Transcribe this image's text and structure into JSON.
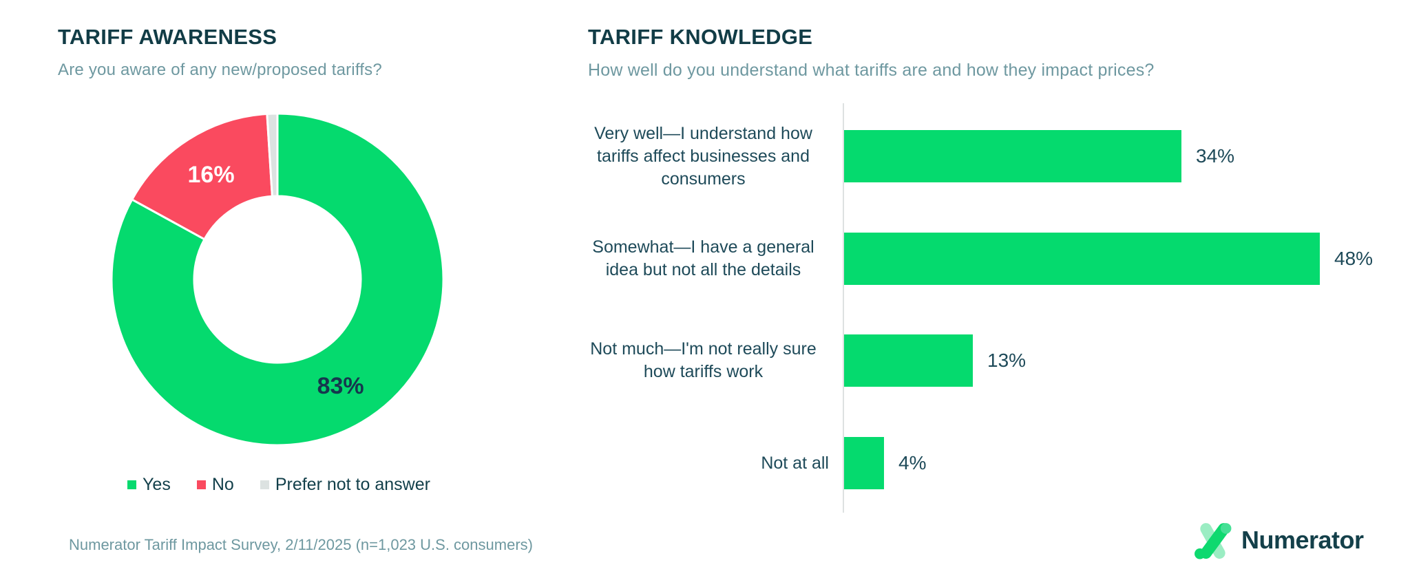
{
  "left_panel": {
    "title": "TARIFF AWARENESS",
    "subtitle": "Are you aware of any new/proposed tariffs?"
  },
  "right_panel": {
    "title": "TARIFF KNOWLEDGE",
    "subtitle": "How well do you understand what tariffs are and how they impact prices?"
  },
  "footer": {
    "source_note": "Numerator Tariff Impact Survey, 2/11/2025 (n=1,023 U.S. consumers)",
    "logo_text": "Numerator"
  },
  "colors": {
    "brand_green": "#05DA6E",
    "negative_red": "#FA4A5F",
    "neutral_gray": "#DCE2E1",
    "title_text": "#113C46",
    "subtitle_text": "#6E98A0",
    "label_text": "#1E4A59",
    "axis_line": "#DDE1E1"
  },
  "chart_data": [
    {
      "type": "pie",
      "subtype": "donut",
      "title": "TARIFF AWARENESS",
      "question": "Are you aware of any new/proposed tariffs?",
      "labels": [
        "Yes",
        "No",
        "Prefer not to answer"
      ],
      "values": [
        83,
        16,
        1
      ],
      "slice_colors": [
        "#05DA6E",
        "#FA4A5F",
        "#DCE2E1"
      ],
      "data_labels": [
        "83%",
        "16%",
        ""
      ],
      "data_label_colors": [
        "#16374E",
        "#FFFFFF",
        ""
      ],
      "legend_position": "bottom",
      "start_angle_deg": 0,
      "direction": "clockwise"
    },
    {
      "type": "bar",
      "orientation": "horizontal",
      "title": "TARIFF KNOWLEDGE",
      "question": "How well do you understand what tariffs are and how they impact prices?",
      "categories": [
        "Very well—I understand how tariffs affect businesses and consumers",
        "Somewhat—I have a general idea but not all the details",
        "Not much—I'm not really sure how tariffs work",
        "Not at all"
      ],
      "values": [
        34,
        48,
        13,
        4
      ],
      "value_labels": [
        "34%",
        "48%",
        "13%",
        "4%"
      ],
      "bar_color": "#05DA6E",
      "xlim": [
        0,
        55
      ],
      "grid": false,
      "legend_position": "none"
    }
  ]
}
